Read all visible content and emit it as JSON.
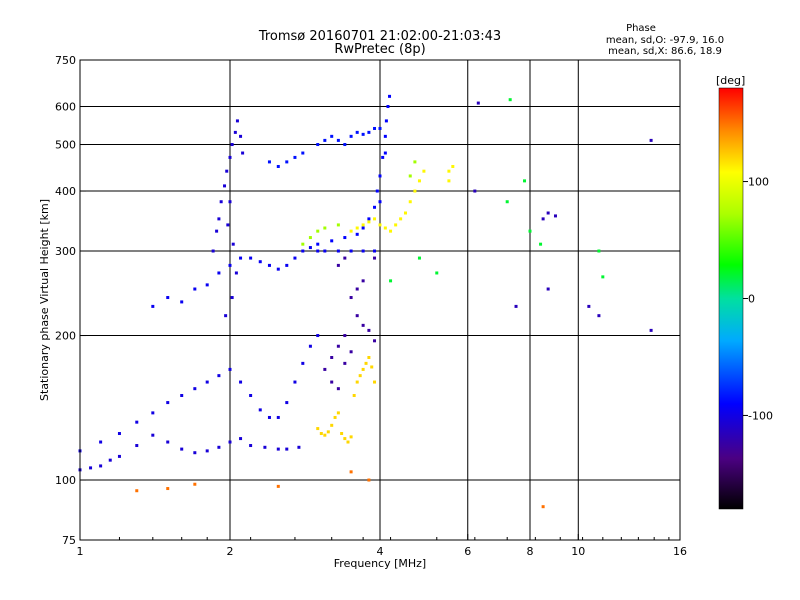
{
  "chart_data": {
    "type": "scatter",
    "title": "Tromsø 20160701 21:02:00-21:03:43",
    "subtitle": "RwPretec (8p)",
    "xlabel": "Frequency [MHz]",
    "ylabel": "Stationary phase Virtual Height [km]",
    "x_scale": "log",
    "y_scale": "log",
    "xlim": [
      1,
      16
    ],
    "ylim": [
      75,
      750
    ],
    "x_ticks": [
      1,
      2,
      4,
      6,
      8,
      10,
      16
    ],
    "y_ticks": [
      75,
      100,
      200,
      300,
      400,
      500,
      600,
      750
    ],
    "x_gridlines": [
      2,
      4,
      6,
      8,
      10
    ],
    "y_gridlines": [
      100,
      200,
      300,
      400,
      500,
      600
    ],
    "grid": true,
    "stats": {
      "heading": "Phase",
      "line_o": "mean, sd,O: -97.9, 16.0",
      "line_x": "mean, sd,X:  86.6, 18.9"
    },
    "colorbar": {
      "label": "[deg]",
      "range": [
        -180,
        180
      ],
      "ticks": [
        100,
        0,
        -100
      ],
      "tick_labels": [
        "100",
        "0",
        "-100"
      ]
    },
    "clusters": [
      {
        "name": "o-trace-low",
        "phase": -105,
        "points": [
          [
            1.0,
            105
          ],
          [
            1.05,
            106
          ],
          [
            1.1,
            107
          ],
          [
            1.15,
            110
          ],
          [
            1.2,
            112
          ],
          [
            1.3,
            118
          ],
          [
            1.4,
            124
          ],
          [
            1.5,
            120
          ],
          [
            1.6,
            116
          ],
          [
            1.7,
            114
          ],
          [
            1.8,
            115
          ],
          [
            1.9,
            117
          ],
          [
            2.0,
            120
          ],
          [
            2.1,
            122
          ],
          [
            2.2,
            118
          ],
          [
            2.35,
            117
          ],
          [
            2.5,
            116
          ],
          [
            2.6,
            116
          ],
          [
            2.75,
            117
          ]
        ]
      },
      {
        "name": "o-trace-mid",
        "phase": -100,
        "points": [
          [
            1.0,
            115
          ],
          [
            1.1,
            120
          ],
          [
            1.2,
            125
          ],
          [
            1.3,
            132
          ],
          [
            1.4,
            138
          ],
          [
            1.5,
            145
          ],
          [
            1.6,
            150
          ],
          [
            1.7,
            155
          ],
          [
            1.8,
            160
          ],
          [
            1.9,
            165
          ],
          [
            2.0,
            170
          ],
          [
            2.1,
            160
          ],
          [
            2.2,
            150
          ],
          [
            2.3,
            140
          ],
          [
            2.4,
            135
          ],
          [
            2.5,
            135
          ],
          [
            2.6,
            145
          ],
          [
            2.7,
            160
          ],
          [
            2.8,
            175
          ],
          [
            2.9,
            190
          ],
          [
            3.0,
            200
          ]
        ]
      },
      {
        "name": "o-f1-band",
        "phase": -95,
        "points": [
          [
            1.4,
            230
          ],
          [
            1.5,
            240
          ],
          [
            1.6,
            235
          ],
          [
            1.7,
            250
          ],
          [
            1.8,
            255
          ],
          [
            1.9,
            270
          ],
          [
            2.0,
            280
          ],
          [
            2.1,
            290
          ],
          [
            2.2,
            290
          ],
          [
            2.3,
            285
          ],
          [
            2.4,
            280
          ],
          [
            2.5,
            275
          ],
          [
            2.6,
            280
          ],
          [
            2.7,
            290
          ],
          [
            2.8,
            300
          ],
          [
            2.9,
            305
          ],
          [
            3.0,
            300
          ],
          [
            3.1,
            300
          ],
          [
            3.3,
            300
          ],
          [
            3.5,
            300
          ],
          [
            3.7,
            300
          ],
          [
            3.9,
            300
          ]
        ]
      },
      {
        "name": "o-vertical-2mhz",
        "phase": -105,
        "points": [
          [
            1.85,
            300
          ],
          [
            1.88,
            330
          ],
          [
            1.9,
            350
          ],
          [
            1.92,
            380
          ],
          [
            1.95,
            410
          ],
          [
            1.97,
            440
          ],
          [
            2.0,
            470
          ],
          [
            2.02,
            500
          ],
          [
            2.05,
            530
          ],
          [
            2.07,
            560
          ],
          [
            2.1,
            520
          ],
          [
            2.12,
            480
          ],
          [
            2.0,
            380
          ],
          [
            1.98,
            340
          ],
          [
            2.03,
            310
          ],
          [
            2.06,
            270
          ],
          [
            2.02,
            240
          ],
          [
            1.96,
            220
          ]
        ]
      },
      {
        "name": "o-f2-cusp",
        "phase": -90,
        "points": [
          [
            3.0,
            310
          ],
          [
            3.2,
            315
          ],
          [
            3.4,
            320
          ],
          [
            3.6,
            325
          ],
          [
            3.7,
            335
          ],
          [
            3.8,
            350
          ],
          [
            3.9,
            370
          ],
          [
            3.95,
            400
          ],
          [
            4.0,
            430
          ],
          [
            4.05,
            470
          ],
          [
            4.1,
            520
          ],
          [
            4.12,
            560
          ],
          [
            4.15,
            600
          ],
          [
            4.18,
            630
          ],
          [
            4.1,
            480
          ],
          [
            4.0,
            380
          ]
        ]
      },
      {
        "name": "o-top-band",
        "phase": -85,
        "points": [
          [
            3.0,
            500
          ],
          [
            3.1,
            510
          ],
          [
            3.2,
            520
          ],
          [
            3.3,
            510
          ],
          [
            3.4,
            500
          ],
          [
            3.5,
            520
          ],
          [
            3.6,
            530
          ],
          [
            3.7,
            525
          ],
          [
            3.8,
            530
          ],
          [
            3.9,
            540
          ],
          [
            4.0,
            540
          ],
          [
            2.6,
            460
          ],
          [
            2.7,
            470
          ],
          [
            2.8,
            480
          ],
          [
            2.5,
            450
          ],
          [
            2.4,
            460
          ]
        ]
      },
      {
        "name": "o-purple-patch",
        "phase": -125,
        "points": [
          [
            3.1,
            170
          ],
          [
            3.2,
            180
          ],
          [
            3.3,
            190
          ],
          [
            3.4,
            175
          ],
          [
            3.5,
            185
          ],
          [
            3.2,
            160
          ],
          [
            3.3,
            155
          ],
          [
            3.4,
            200
          ],
          [
            3.6,
            220
          ],
          [
            3.7,
            210
          ],
          [
            3.8,
            205
          ],
          [
            3.9,
            195
          ],
          [
            3.5,
            240
          ],
          [
            3.6,
            250
          ],
          [
            3.7,
            260
          ],
          [
            3.9,
            290
          ],
          [
            3.4,
            290
          ],
          [
            3.3,
            280
          ]
        ]
      },
      {
        "name": "x-trace-low",
        "phase": 120,
        "points": [
          [
            3.0,
            128
          ],
          [
            3.05,
            125
          ],
          [
            3.1,
            124
          ],
          [
            3.15,
            126
          ],
          [
            3.2,
            130
          ],
          [
            3.25,
            135
          ],
          [
            3.3,
            138
          ],
          [
            3.35,
            125
          ],
          [
            3.4,
            122
          ],
          [
            3.45,
            120
          ],
          [
            3.5,
            123
          ],
          [
            3.55,
            150
          ],
          [
            3.6,
            160
          ],
          [
            3.65,
            165
          ],
          [
            3.7,
            170
          ],
          [
            3.75,
            175
          ],
          [
            3.8,
            180
          ],
          [
            3.85,
            172
          ],
          [
            3.9,
            160
          ]
        ]
      },
      {
        "name": "x-trace-high",
        "phase": 110,
        "points": [
          [
            3.5,
            330
          ],
          [
            3.6,
            335
          ],
          [
            3.7,
            340
          ],
          [
            3.8,
            345
          ],
          [
            3.9,
            350
          ],
          [
            4.0,
            340
          ],
          [
            4.1,
            335
          ],
          [
            4.2,
            330
          ],
          [
            4.3,
            340
          ],
          [
            4.4,
            350
          ],
          [
            4.5,
            360
          ],
          [
            4.6,
            380
          ],
          [
            4.7,
            400
          ],
          [
            4.8,
            420
          ],
          [
            4.9,
            440
          ],
          [
            5.5,
            440
          ],
          [
            5.6,
            450
          ],
          [
            5.5,
            420
          ]
        ]
      },
      {
        "name": "x-scatter",
        "phase": 70,
        "points": [
          [
            2.8,
            310
          ],
          [
            2.9,
            320
          ],
          [
            3.0,
            330
          ],
          [
            3.1,
            335
          ],
          [
            3.3,
            340
          ],
          [
            4.6,
            430
          ],
          [
            4.7,
            460
          ]
        ]
      },
      {
        "name": "sparse-high-freq",
        "phase": -115,
        "points": [
          [
            6.3,
            610
          ],
          [
            8.5,
            350
          ],
          [
            8.7,
            360
          ],
          [
            9.0,
            355
          ],
          [
            8.7,
            250
          ],
          [
            7.5,
            230
          ],
          [
            10.5,
            230
          ],
          [
            11.0,
            220
          ],
          [
            14.0,
            205
          ],
          [
            14.0,
            510
          ],
          [
            6.2,
            400
          ]
        ]
      },
      {
        "name": "sparse-misc",
        "phase": 20,
        "points": [
          [
            7.2,
            380
          ],
          [
            7.8,
            420
          ],
          [
            8.0,
            330
          ],
          [
            8.4,
            310
          ],
          [
            7.3,
            620
          ],
          [
            11.0,
            300
          ],
          [
            11.2,
            265
          ],
          [
            4.8,
            290
          ],
          [
            5.2,
            270
          ],
          [
            4.2,
            260
          ]
        ]
      },
      {
        "name": "isolated-low",
        "phase": 150,
        "points": [
          [
            3.8,
            100
          ],
          [
            3.5,
            104
          ],
          [
            8.5,
            88
          ],
          [
            1.3,
            95
          ],
          [
            1.5,
            96
          ],
          [
            2.5,
            97
          ],
          [
            1.7,
            98
          ]
        ]
      }
    ]
  }
}
